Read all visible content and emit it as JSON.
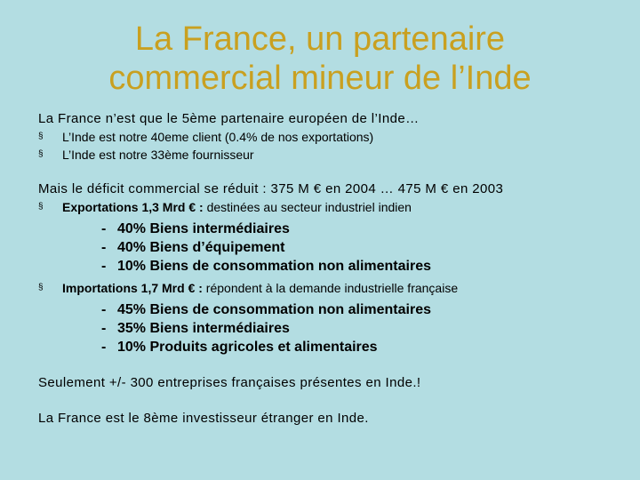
{
  "title": {
    "line1": "La France, un partenaire",
    "line2": "commercial mineur de l’Inde"
  },
  "section1": {
    "heading": "La France n’est que le 5ème partenaire européen de l’Inde…",
    "bullets": [
      "L’Inde est notre 40eme client (0.4% de nos exportations)",
      "L’Inde est notre 33ème fournisseur"
    ]
  },
  "section2": {
    "heading": "Mais le déficit commercial se réduit : 375 M € en 2004 … 475 M € en 2003",
    "exports": {
      "lead": "Exportations 1,3 Mrd € :",
      "text": " destinées au secteur industriel indien",
      "items": [
        "40% Biens intermédiaires",
        "40% Biens d’équipement",
        "10% Biens de consommation non alimentaires"
      ]
    },
    "imports": {
      "lead": "Importations 1,7 Mrd € :",
      "text": " répondent à la demande industrielle française",
      "items": [
        "45% Biens de consommation non alimentaires",
        "35% Biens intermédiaires",
        "10% Produits agricoles et alimentaires"
      ]
    }
  },
  "note1": "Seulement +/- 300 entreprises françaises présentes en Inde.!",
  "note2": "La France est le 8ème investisseur étranger en Inde.",
  "symbols": {
    "bullet": "§",
    "dash": "-"
  },
  "colors": {
    "background": "#b3dde2",
    "title": "#c9a020"
  }
}
